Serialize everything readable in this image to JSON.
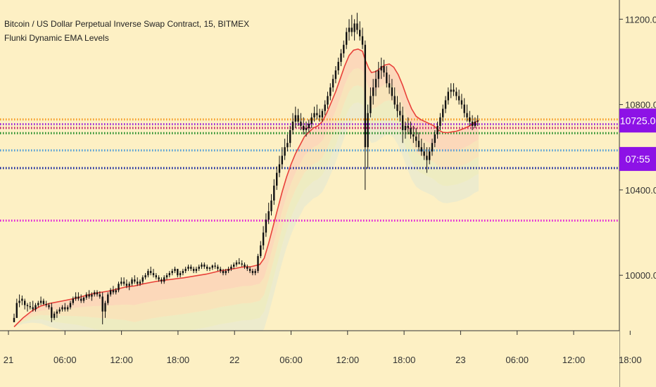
{
  "chart_data": {
    "type": "candlestick",
    "title": "Bitcoin / US Dollar Perpetual Inverse Swap Contract, 15, BITMEX",
    "subtitle": "Flunki Dynamic EMA Levels",
    "ylim": [
      9740,
      11290
    ],
    "y_ticks": [
      "11200.0",
      "10800.0",
      "10400.0",
      "10000.0"
    ],
    "y_tick_values": [
      11200,
      10800,
      10400,
      10000
    ],
    "x_ticks": [
      "21",
      "06:00",
      "12:00",
      "18:00",
      "22",
      "06:00",
      "12:00",
      "18:00",
      "23",
      "06:00",
      "12:00",
      "18:00"
    ],
    "price_badge": "10725.0",
    "countdown_badge": "07:55",
    "price_badge_value": 10725,
    "countdown_badge_value": 10545,
    "levels": [
      {
        "price": 10730,
        "color": "#f59a23"
      },
      {
        "price": 10708,
        "color": "#9d1fd8"
      },
      {
        "price": 10690,
        "color": "#c31b68"
      },
      {
        "price": 10666,
        "color": "#1e8a26"
      },
      {
        "price": 10585,
        "color": "#4a9ad8"
      },
      {
        "price": 10502,
        "color": "#0d1f9e"
      },
      {
        "price": 10256,
        "color": "#e21bd9"
      }
    ],
    "ema": [
      [
        0,
        9758
      ],
      [
        10,
        9800
      ],
      [
        20,
        9833
      ],
      [
        30,
        9856
      ],
      [
        40,
        9868
      ],
      [
        55,
        9880
      ],
      [
        70,
        9893
      ],
      [
        80,
        9905
      ],
      [
        90,
        9915
      ],
      [
        105,
        9925
      ],
      [
        115,
        9935
      ],
      [
        125,
        9945
      ],
      [
        135,
        9950
      ],
      [
        145,
        9960
      ],
      [
        155,
        9968
      ],
      [
        165,
        9975
      ],
      [
        175,
        9980
      ],
      [
        190,
        9988
      ],
      [
        200,
        9995
      ],
      [
        215,
        10005
      ],
      [
        230,
        10020
      ],
      [
        245,
        10030
      ],
      [
        255,
        10038
      ],
      [
        265,
        10040
      ],
      [
        275,
        10050
      ],
      [
        280,
        10080
      ],
      [
        285,
        10150
      ],
      [
        290,
        10230
      ],
      [
        295,
        10310
      ],
      [
        300,
        10390
      ],
      [
        305,
        10460
      ],
      [
        310,
        10520
      ],
      [
        315,
        10570
      ],
      [
        320,
        10610
      ],
      [
        325,
        10650
      ],
      [
        330,
        10670
      ],
      [
        335,
        10690
      ],
      [
        340,
        10700
      ],
      [
        345,
        10720
      ],
      [
        350,
        10760
      ],
      [
        355,
        10810
      ],
      [
        360,
        10860
      ],
      [
        365,
        10920
      ],
      [
        370,
        10980
      ],
      [
        375,
        11030
      ],
      [
        380,
        11055
      ],
      [
        385,
        11060
      ],
      [
        390,
        11050
      ],
      [
        393,
        11010
      ],
      [
        397,
        10970
      ],
      [
        400,
        10950
      ],
      [
        405,
        10955
      ],
      [
        410,
        10970
      ],
      [
        415,
        10985
      ],
      [
        420,
        10990
      ],
      [
        425,
        10975
      ],
      [
        430,
        10940
      ],
      [
        435,
        10890
      ],
      [
        440,
        10830
      ],
      [
        445,
        10780
      ],
      [
        450,
        10745
      ],
      [
        455,
        10730
      ],
      [
        460,
        10720
      ],
      [
        465,
        10710
      ],
      [
        470,
        10700
      ],
      [
        475,
        10680
      ],
      [
        480,
        10670
      ],
      [
        485,
        10668
      ],
      [
        490,
        10672
      ],
      [
        495,
        10675
      ],
      [
        500,
        10682
      ],
      [
        505,
        10690
      ],
      [
        510,
        10700
      ],
      [
        515,
        10715
      ],
      [
        520,
        10725
      ]
    ],
    "ohlc": [
      [
        0,
        9780,
        9820,
        9780,
        9800
      ],
      [
        3,
        9800,
        9890,
        9800,
        9870
      ],
      [
        6,
        9870,
        9910,
        9850,
        9880
      ],
      [
        9,
        9880,
        9905,
        9860,
        9890
      ],
      [
        12,
        9880,
        9890,
        9840,
        9860
      ],
      [
        15,
        9860,
        9870,
        9830,
        9855
      ],
      [
        18,
        9855,
        9875,
        9840,
        9850
      ],
      [
        21,
        9850,
        9880,
        9830,
        9840
      ],
      [
        24,
        9840,
        9870,
        9830,
        9860
      ],
      [
        27,
        9860,
        9880,
        9850,
        9870
      ],
      [
        30,
        9870,
        9900,
        9860,
        9880
      ],
      [
        33,
        9880,
        9890,
        9860,
        9865
      ],
      [
        36,
        9865,
        9880,
        9850,
        9860
      ],
      [
        39,
        9860,
        9870,
        9840,
        9850
      ],
      [
        42,
        9850,
        9870,
        9780,
        9800
      ],
      [
        45,
        9800,
        9830,
        9790,
        9820
      ],
      [
        48,
        9820,
        9840,
        9800,
        9830
      ],
      [
        51,
        9830,
        9850,
        9820,
        9840
      ],
      [
        54,
        9840,
        9860,
        9830,
        9850
      ],
      [
        57,
        9850,
        9870,
        9830,
        9840
      ],
      [
        60,
        9840,
        9860,
        9830,
        9850
      ],
      [
        63,
        9850,
        9880,
        9840,
        9870
      ],
      [
        66,
        9870,
        9900,
        9860,
        9890
      ],
      [
        69,
        9890,
        9920,
        9880,
        9900
      ],
      [
        72,
        9900,
        9920,
        9880,
        9890
      ],
      [
        75,
        9890,
        9910,
        9870,
        9880
      ],
      [
        78,
        9880,
        9900,
        9870,
        9895
      ],
      [
        81,
        9895,
        9920,
        9885,
        9910
      ],
      [
        84,
        9910,
        9930,
        9890,
        9900
      ],
      [
        87,
        9900,
        9920,
        9880,
        9910
      ],
      [
        90,
        9910,
        9930,
        9900,
        9920
      ],
      [
        93,
        9920,
        9930,
        9900,
        9910
      ],
      [
        96,
        9910,
        9925,
        9890,
        9900
      ],
      [
        99,
        9900,
        9920,
        9770,
        9830
      ],
      [
        102,
        9830,
        9880,
        9800,
        9870
      ],
      [
        105,
        9870,
        9920,
        9860,
        9910
      ],
      [
        108,
        9910,
        9940,
        9900,
        9930
      ],
      [
        111,
        9930,
        9950,
        9910,
        9920
      ],
      [
        114,
        9920,
        9940,
        9910,
        9930
      ],
      [
        117,
        9930,
        9970,
        9920,
        9960
      ],
      [
        120,
        9960,
        9990,
        9950,
        9970
      ],
      [
        123,
        9970,
        9990,
        9950,
        9960
      ],
      [
        126,
        9960,
        9980,
        9940,
        9950
      ],
      [
        129,
        9950,
        9970,
        9930,
        9960
      ],
      [
        132,
        9960,
        9990,
        9950,
        9980
      ],
      [
        135,
        9980,
        10000,
        9960,
        9970
      ],
      [
        138,
        9970,
        9990,
        9950,
        9960
      ],
      [
        141,
        9960,
        9980,
        9950,
        9970
      ],
      [
        144,
        9970,
        10000,
        9960,
        9990
      ],
      [
        147,
        9990,
        10010,
        9980,
        10000
      ],
      [
        150,
        10000,
        10030,
        9990,
        10020
      ],
      [
        153,
        10020,
        10040,
        10000,
        10010
      ],
      [
        156,
        10010,
        10030,
        9990,
        10000
      ],
      [
        159,
        10000,
        10010,
        9980,
        9990
      ],
      [
        162,
        9990,
        10000,
        9970,
        9980
      ],
      [
        165,
        9980,
        9990,
        9960,
        9970
      ],
      [
        168,
        9970,
        10000,
        9960,
        9990
      ],
      [
        171,
        9990,
        10010,
        9980,
        10000
      ],
      [
        174,
        10000,
        10020,
        9990,
        10010
      ],
      [
        177,
        10010,
        10030,
        10000,
        10020
      ],
      [
        180,
        10020,
        10040,
        10010,
        10030
      ],
      [
        183,
        10030,
        10020,
        9990,
        10000
      ],
      [
        186,
        10000,
        10020,
        9990,
        10010
      ],
      [
        189,
        10010,
        10030,
        10000,
        10020
      ],
      [
        192,
        10020,
        10040,
        10010,
        10030
      ],
      [
        195,
        10030,
        10050,
        10020,
        10040
      ],
      [
        198,
        10040,
        10050,
        10020,
        10030
      ],
      [
        201,
        10030,
        10040,
        10010,
        10020
      ],
      [
        204,
        10020,
        10040,
        10010,
        10030
      ],
      [
        207,
        10030,
        10050,
        10020,
        10040
      ],
      [
        210,
        10040,
        10060,
        10030,
        10050
      ],
      [
        213,
        10050,
        10060,
        10030,
        10040
      ],
      [
        216,
        10040,
        10050,
        10020,
        10030
      ],
      [
        219,
        10030,
        10040,
        10020,
        10035
      ],
      [
        222,
        10035,
        10050,
        10025,
        10045
      ],
      [
        225,
        10045,
        10060,
        10030,
        10040
      ],
      [
        228,
        10040,
        10050,
        10020,
        10030
      ],
      [
        231,
        10030,
        10040,
        10010,
        10020
      ],
      [
        234,
        10020,
        10030,
        10000,
        10010
      ],
      [
        237,
        10010,
        10030,
        10000,
        10020
      ],
      [
        240,
        10020,
        10040,
        10010,
        10030
      ],
      [
        243,
        10030,
        10050,
        10020,
        10040
      ],
      [
        246,
        10040,
        10060,
        10030,
        10050
      ],
      [
        249,
        10050,
        10070,
        10040,
        10060
      ],
      [
        252,
        10060,
        10080,
        10050,
        10055
      ],
      [
        255,
        10055,
        10070,
        10040,
        10050
      ],
      [
        258,
        10050,
        10060,
        10030,
        10040
      ],
      [
        261,
        10040,
        10050,
        10020,
        10030
      ],
      [
        264,
        10030,
        10040,
        10010,
        10020
      ],
      [
        267,
        10020,
        10030,
        10000,
        10010
      ],
      [
        270,
        10010,
        10030,
        10000,
        10020
      ],
      [
        273,
        10020,
        10100,
        10010,
        10090
      ],
      [
        276,
        10090,
        10160,
        10080,
        10140
      ],
      [
        279,
        10140,
        10230,
        10120,
        10200
      ],
      [
        282,
        10200,
        10290,
        10180,
        10260
      ],
      [
        285,
        10260,
        10340,
        10240,
        10300
      ],
      [
        288,
        10300,
        10380,
        10280,
        10350
      ],
      [
        291,
        10350,
        10450,
        10330,
        10420
      ],
      [
        294,
        10420,
        10510,
        10400,
        10480
      ],
      [
        297,
        10480,
        10560,
        10460,
        10520
      ],
      [
        300,
        10520,
        10600,
        10500,
        10560
      ],
      [
        303,
        10560,
        10640,
        10540,
        10600
      ],
      [
        306,
        10600,
        10660,
        10580,
        10620
      ],
      [
        309,
        10620,
        10700,
        10600,
        10680
      ],
      [
        312,
        10680,
        10760,
        10660,
        10720
      ],
      [
        315,
        10720,
        10790,
        10690,
        10750
      ],
      [
        318,
        10750,
        10780,
        10700,
        10720
      ],
      [
        321,
        10720,
        10760,
        10680,
        10700
      ],
      [
        324,
        10700,
        10740,
        10660,
        10680
      ],
      [
        327,
        10680,
        10720,
        10650,
        10690
      ],
      [
        330,
        10690,
        10730,
        10670,
        10710
      ],
      [
        333,
        10710,
        10760,
        10690,
        10740
      ],
      [
        336,
        10740,
        10790,
        10720,
        10760
      ],
      [
        339,
        10760,
        10800,
        10730,
        10750
      ],
      [
        342,
        10750,
        10780,
        10720,
        10740
      ],
      [
        345,
        10740,
        10780,
        10720,
        10770
      ],
      [
        348,
        10770,
        10820,
        10750,
        10800
      ],
      [
        351,
        10800,
        10860,
        10780,
        10840
      ],
      [
        354,
        10840,
        10900,
        10820,
        10880
      ],
      [
        357,
        10880,
        10940,
        10860,
        10920
      ],
      [
        360,
        10920,
        10980,
        10900,
        10960
      ],
      [
        363,
        10960,
        11020,
        10940,
        11000
      ],
      [
        366,
        11000,
        11060,
        10980,
        11040
      ],
      [
        369,
        11040,
        11100,
        11020,
        11080
      ],
      [
        372,
        11080,
        11160,
        11060,
        11140
      ],
      [
        375,
        11140,
        11200,
        11100,
        11160
      ],
      [
        378,
        11160,
        11220,
        11120,
        11140
      ],
      [
        381,
        11140,
        11200,
        11100,
        11180
      ],
      [
        384,
        11180,
        11230,
        11130,
        11150
      ],
      [
        387,
        11150,
        11190,
        11100,
        11120
      ],
      [
        390,
        11120,
        11160,
        11060,
        11080
      ],
      [
        393,
        11080,
        11100,
        10400,
        10600
      ],
      [
        396,
        10600,
        10800,
        10500,
        10760
      ],
      [
        399,
        10760,
        10880,
        10740,
        10840
      ],
      [
        402,
        10840,
        10920,
        10800,
        10880
      ],
      [
        405,
        10880,
        10960,
        10840,
        10920
      ],
      [
        408,
        10920,
        11000,
        10880,
        10960
      ],
      [
        411,
        10960,
        11020,
        10920,
        10980
      ],
      [
        414,
        10980,
        11010,
        10930,
        10950
      ],
      [
        417,
        10950,
        10980,
        10880,
        10900
      ],
      [
        420,
        10900,
        10940,
        10850,
        10880
      ],
      [
        423,
        10880,
        10920,
        10820,
        10840
      ],
      [
        426,
        10840,
        10880,
        10780,
        10800
      ],
      [
        429,
        10800,
        10840,
        10740,
        10770
      ],
      [
        432,
        10770,
        10810,
        10720,
        10750
      ],
      [
        435,
        10750,
        10790,
        10620,
        10680
      ],
      [
        438,
        10680,
        10720,
        10640,
        10700
      ],
      [
        441,
        10700,
        10740,
        10660,
        10690
      ],
      [
        444,
        10690,
        10720,
        10640,
        10660
      ],
      [
        447,
        10660,
        10700,
        10620,
        10650
      ],
      [
        450,
        10650,
        10690,
        10600,
        10630
      ],
      [
        453,
        10630,
        10670,
        10580,
        10600
      ],
      [
        456,
        10600,
        10640,
        10560,
        10580
      ],
      [
        459,
        10580,
        10620,
        10540,
        10560
      ],
      [
        462,
        10560,
        10600,
        10480,
        10540
      ],
      [
        465,
        10540,
        10600,
        10520,
        10580
      ],
      [
        468,
        10580,
        10640,
        10560,
        10620
      ],
      [
        471,
        10620,
        10680,
        10600,
        10660
      ],
      [
        474,
        10660,
        10720,
        10640,
        10700
      ],
      [
        477,
        10700,
        10760,
        10680,
        10740
      ],
      [
        480,
        10740,
        10800,
        10720,
        10780
      ],
      [
        483,
        10780,
        10840,
        10760,
        10820
      ],
      [
        486,
        10820,
        10880,
        10800,
        10860
      ],
      [
        489,
        10860,
        10900,
        10830,
        10870
      ],
      [
        492,
        10870,
        10900,
        10840,
        10860
      ],
      [
        495,
        10860,
        10880,
        10820,
        10840
      ],
      [
        498,
        10840,
        10870,
        10800,
        10820
      ],
      [
        501,
        10820,
        10850,
        10780,
        10800
      ],
      [
        504,
        10800,
        10830,
        10740,
        10760
      ],
      [
        507,
        10760,
        10800,
        10720,
        10740
      ],
      [
        510,
        10740,
        10770,
        10700,
        10720
      ],
      [
        513,
        10720,
        10750,
        10680,
        10700
      ],
      [
        516,
        10700,
        10740,
        10690,
        10720
      ],
      [
        519,
        10720,
        10750,
        10700,
        10725
      ]
    ]
  }
}
